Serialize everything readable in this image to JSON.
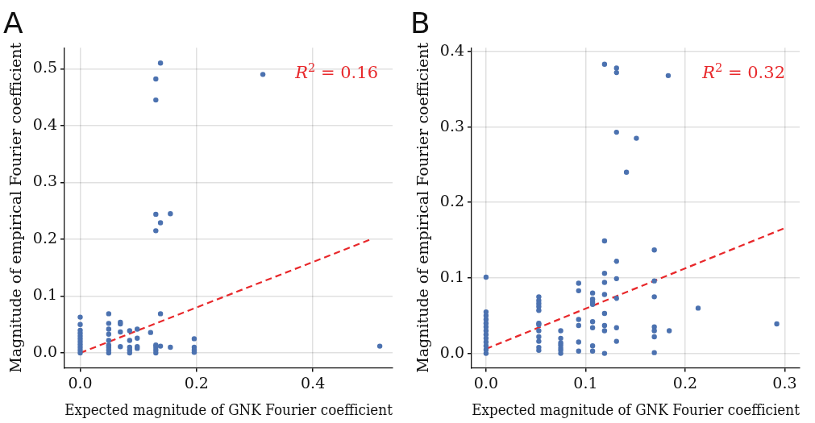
{
  "chart_data": [
    {
      "type": "scatter",
      "title": "A",
      "xlabel": "Expected magnitude of GNK Fourier coefficient",
      "ylabel": "Magnitude of empirical Fourier coefficient",
      "xlim": [
        -0.027,
        0.537
      ],
      "ylim": [
        -0.026,
        0.537
      ],
      "xticks": [
        {
          "value": 0,
          "label": "0.0"
        },
        0.2,
        0.4
      ],
      "yticks": [
        {
          "value": 0,
          "label": "0.0"
        },
        0.1,
        0.2,
        0.3,
        0.4,
        0.5
      ],
      "grid": true,
      "marker": "circle",
      "annotations": [
        "R$^{2}$ = 0.16"
      ],
      "series": [
        {
          "color": "#4c72b0",
          "x": [
            0,
            0,
            0,
            0,
            0,
            0,
            0,
            0,
            0,
            0,
            0,
            0.049,
            0.049,
            0.049,
            0.049,
            0.049,
            0.049,
            0.049,
            0.049,
            0.049,
            0.069,
            0.069,
            0.069,
            0.069,
            0.085,
            0.085,
            0.085,
            0.085,
            0.085,
            0.098,
            0.098,
            0.098,
            0.098,
            0.121,
            0.13,
            0.13,
            0.13,
            0.13,
            0.13,
            0.13,
            0.13,
            0.13,
            0.138,
            0.138,
            0.138,
            0.138,
            0.155,
            0.155,
            0.196,
            0.196,
            0.196,
            0.196,
            0.314,
            0.515
          ],
          "values": [
            0,
            0.005,
            0.01,
            0.015,
            0.02,
            0.025,
            0.03,
            0.035,
            0.04,
            0.05,
            0.063,
            0.069,
            0.052,
            0.042,
            0.033,
            0.022,
            0.014,
            0.01,
            0.005,
            0,
            0.054,
            0.051,
            0.037,
            0.011,
            0.039,
            0.022,
            0.01,
            0.005,
            0,
            0.042,
            0.026,
            0.011,
            0.008,
            0.036,
            0.482,
            0.445,
            0.244,
            0.215,
            0.014,
            0.01,
            0,
            0.005,
            0.51,
            0.229,
            0.069,
            0.012,
            0.245,
            0.01,
            0.025,
            0.01,
            0.005,
            0.001,
            0.49,
            0.012
          ]
        },
        {
          "type": "line",
          "color": "#e8282b",
          "line_style": "dashed",
          "marker": "none",
          "x": [
            0,
            0.5
          ],
          "values": [
            0,
            0.2
          ]
        }
      ]
    },
    {
      "type": "scatter",
      "title": "B",
      "xlabel": "Expected magnitude of GNK Fourier coefficient",
      "ylabel": "Magnitude of empirical Fourier coefficient",
      "xlim": [
        -0.0145,
        0.315
      ],
      "ylim": [
        -0.019,
        0.405
      ],
      "xticks": [
        {
          "value": 0,
          "label": "0.0"
        },
        0.1,
        0.2,
        0.3
      ],
      "yticks": [
        {
          "value": 0,
          "label": "0.0"
        },
        0.1,
        0.2,
        0.3,
        0.4
      ],
      "grid": true,
      "marker": "circle",
      "annotations": [
        "R$^{2}$ = 0.32"
      ],
      "series": [
        {
          "color": "#4c72b0",
          "x": [
            0,
            0,
            0,
            0,
            0,
            0,
            0,
            0,
            0,
            0,
            0,
            0,
            0,
            0.053,
            0.053,
            0.053,
            0.053,
            0.053,
            0.053,
            0.053,
            0.053,
            0.053,
            0.053,
            0.053,
            0.053,
            0.075,
            0.075,
            0.075,
            0.075,
            0.075,
            0.075,
            0.075,
            0.093,
            0.093,
            0.093,
            0.093,
            0.093,
            0.093,
            0.107,
            0.107,
            0.107,
            0.107,
            0.107,
            0.107,
            0.107,
            0.107,
            0.119,
            0.119,
            0.119,
            0.119,
            0.119,
            0.119,
            0.119,
            0.119,
            0.119,
            0.131,
            0.131,
            0.131,
            0.131,
            0.131,
            0.131,
            0.131,
            0.131,
            0.141,
            0.151,
            0.169,
            0.169,
            0.169,
            0.169,
            0.169,
            0.169,
            0.169,
            0.183,
            0.184,
            0.213,
            0.292
          ],
          "values": [
            0,
            0.005,
            0.01,
            0.015,
            0.02,
            0.025,
            0.03,
            0.035,
            0.04,
            0.045,
            0.05,
            0.055,
            0.101,
            0.075,
            0.07,
            0.066,
            0.062,
            0.057,
            0.04,
            0.038,
            0.03,
            0.022,
            0.016,
            0.008,
            0.004,
            0.03,
            0.02,
            0.014,
            0.011,
            0.007,
            0.004,
            0,
            0.093,
            0.083,
            0.045,
            0.037,
            0.015,
            0.003,
            0.08,
            0.072,
            0.068,
            0.065,
            0.042,
            0.034,
            0.01,
            0.003,
            0.383,
            0.149,
            0.106,
            0.094,
            0.078,
            0.053,
            0.037,
            0.03,
            0,
            0.378,
            0.372,
            0.293,
            0.122,
            0.099,
            0.073,
            0.034,
            0.016,
            0.24,
            0.285,
            0.137,
            0.096,
            0.075,
            0.035,
            0.03,
            0.022,
            0.001,
            0.368,
            0.03,
            0.06,
            0.039
          ]
        },
        {
          "type": "line",
          "color": "#e8282b",
          "line_style": "dashed",
          "marker": "none",
          "x": [
            0,
            0.3
          ],
          "values": [
            0.006,
            0.166
          ]
        }
      ]
    }
  ]
}
